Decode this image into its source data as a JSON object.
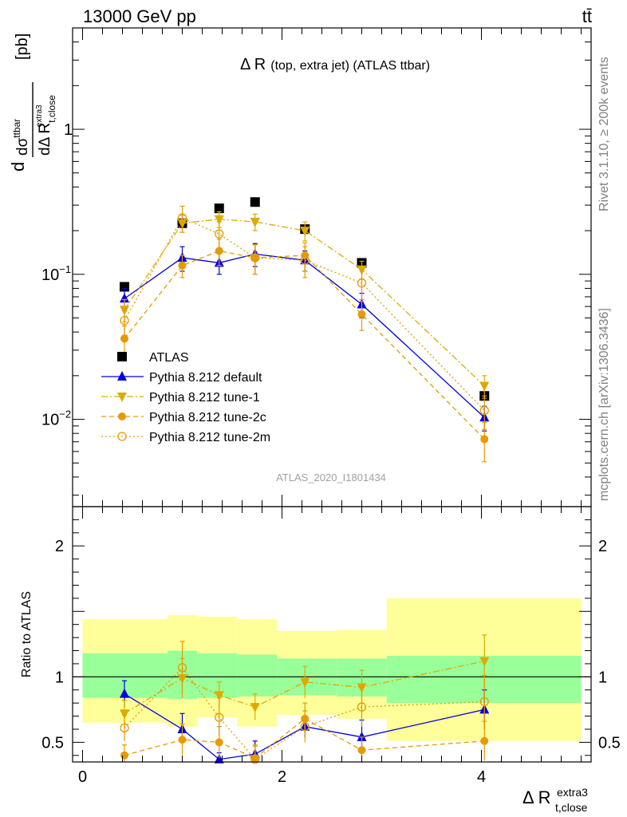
{
  "header": {
    "energy_label": "13000 GeV pp",
    "process_label": "tt̄"
  },
  "side_labels": {
    "rivet": "Rivet 3.1.10, ≥ 200k events",
    "mcplots": "mcplots.cern.ch [arXiv:1306.3436]"
  },
  "analysis_id": "ATLAS_2020_I1801434",
  "chart_data": [
    {
      "type": "scatter",
      "title": "Δ R (top, extra jet) (ATLAS ttbar)",
      "title_main": "Δ R",
      "title_sub": "(top, extra jet) (ATLAS ttbar)",
      "ylabel": "dσ^ttbar / dΔ R_t,close^extra3 [pb]",
      "yscale": "log",
      "ylim": [
        0.0025,
        5
      ],
      "xlim": [
        -0.1,
        5.1
      ],
      "ytick_labels": [
        "10^-2",
        "10^-1",
        "1"
      ],
      "series": [
        {
          "name": "ATLAS",
          "color": "#000000",
          "marker": "square",
          "x": [
            0.42,
            1.0,
            1.37,
            1.73,
            2.23,
            2.8,
            4.03
          ],
          "y": [
            0.082,
            0.225,
            0.285,
            0.315,
            0.205,
            0.12,
            0.0145
          ]
        },
        {
          "name": "Pythia 8.212 default",
          "color": "#0000dd",
          "marker": "triangle-up",
          "line": "solid",
          "x": [
            0.42,
            1.0,
            1.37,
            1.73,
            2.23,
            2.8,
            4.03
          ],
          "y": [
            0.068,
            0.13,
            0.12,
            0.138,
            0.125,
            0.062,
            0.0103
          ],
          "err": [
            0.012,
            0.025,
            0.02,
            0.025,
            0.02,
            0.012,
            0.002
          ]
        },
        {
          "name": "Pythia 8.212 tune-1",
          "color": "#ddaa00",
          "marker": "triangle-down",
          "line": "dashdot",
          "x": [
            0.42,
            1.0,
            1.37,
            1.73,
            2.23,
            2.8,
            4.03
          ],
          "y": [
            0.057,
            0.225,
            0.24,
            0.23,
            0.2,
            0.108,
            0.017
          ],
          "err": [
            0.01,
            0.03,
            0.03,
            0.03,
            0.03,
            0.015,
            0.003
          ]
        },
        {
          "name": "Pythia 8.212 tune-2c",
          "color": "#e69a00",
          "marker": "circle",
          "line": "dashed",
          "x": [
            0.42,
            1.0,
            1.37,
            1.73,
            2.23,
            2.8,
            4.03
          ],
          "y": [
            0.036,
            0.115,
            0.145,
            0.13,
            0.135,
            0.053,
            0.0073
          ],
          "err": [
            0.008,
            0.02,
            0.03,
            0.03,
            0.03,
            0.012,
            0.0022
          ]
        },
        {
          "name": "Pythia 8.212 tune-2m",
          "color": "#e69a00",
          "marker": "open-circle",
          "line": "dotted",
          "x": [
            0.42,
            1.0,
            1.37,
            1.73,
            2.23,
            2.8,
            4.03
          ],
          "y": [
            0.048,
            0.245,
            0.19,
            0.13,
            0.125,
            0.087,
            0.0115
          ],
          "err": [
            0.01,
            0.05,
            0.04,
            0.03,
            0.03,
            0.02,
            0.003
          ]
        }
      ]
    },
    {
      "type": "scatter",
      "ylabel": "Ratio to ATLAS",
      "xlabel": "Δ R_t,close^extra3",
      "xlabel_main": "Δ R",
      "xlabel_sub": "t,close",
      "xlabel_sup": "extra3",
      "ylim": [
        0.35,
        2.3
      ],
      "xlim": [
        -0.1,
        5.1
      ],
      "x_ticks": [
        0,
        2,
        4
      ],
      "y_ticks": [
        0.5,
        1,
        2
      ],
      "bands": {
        "edges": [
          0.0,
          0.85,
          1.15,
          1.55,
          1.95,
          2.55,
          3.05,
          5.0
        ],
        "stat": [
          [
            0.84,
            1.18
          ],
          [
            0.83,
            1.2
          ],
          [
            0.84,
            1.18
          ],
          [
            0.85,
            1.17
          ],
          [
            0.86,
            1.14
          ],
          [
            0.85,
            1.14
          ],
          [
            0.8,
            1.16
          ]
        ],
        "total": [
          [
            0.65,
            1.44
          ],
          [
            0.62,
            1.47
          ],
          [
            0.69,
            1.46
          ],
          [
            0.62,
            1.44
          ],
          [
            0.71,
            1.35
          ],
          [
            0.68,
            1.36
          ],
          [
            0.51,
            1.6
          ]
        ],
        "stat_color": "#99ff99",
        "total_color": "#ffff99"
      },
      "series": [
        {
          "name": "Pythia 8.212 default",
          "color": "#0000dd",
          "x": [
            0.42,
            1.0,
            1.37,
            1.73,
            2.23,
            2.8,
            4.03
          ],
          "y": [
            0.87,
            0.6,
            0.37,
            0.41,
            0.62,
            0.54,
            0.75
          ],
          "err": [
            0.1,
            0.12,
            0.05,
            0.1,
            0.08,
            0.13,
            0.15
          ]
        },
        {
          "name": "Pythia 8.212 tune-1",
          "color": "#ddaa00",
          "x": [
            0.42,
            1.0,
            1.37,
            1.73,
            2.23,
            2.8,
            4.03
          ],
          "y": [
            0.72,
            0.99,
            0.86,
            0.77,
            0.96,
            0.92,
            1.12
          ],
          "err": [
            0.1,
            0.15,
            0.1,
            0.1,
            0.12,
            0.13,
            0.2
          ]
        },
        {
          "name": "Pythia 8.212 tune-2c",
          "color": "#e69a00",
          "x": [
            0.42,
            1.0,
            1.37,
            1.73,
            2.23,
            2.8,
            4.03
          ],
          "y": [
            0.4,
            0.52,
            0.5,
            0.38,
            0.68,
            0.44,
            0.51
          ],
          "err": [
            0.08,
            0.12,
            0.12,
            0.1,
            0.12,
            0.1,
            0.15
          ]
        },
        {
          "name": "Pythia 8.212 tune-2m",
          "color": "#e69a00",
          "x": [
            0.42,
            1.0,
            1.37,
            1.73,
            2.23,
            2.8,
            4.03
          ],
          "y": [
            0.61,
            1.07,
            0.69,
            0.37,
            0.62,
            0.77,
            0.81
          ],
          "err": [
            0.1,
            0.2,
            0.15,
            0.1,
            0.12,
            0.15,
            0.2
          ]
        }
      ]
    }
  ]
}
